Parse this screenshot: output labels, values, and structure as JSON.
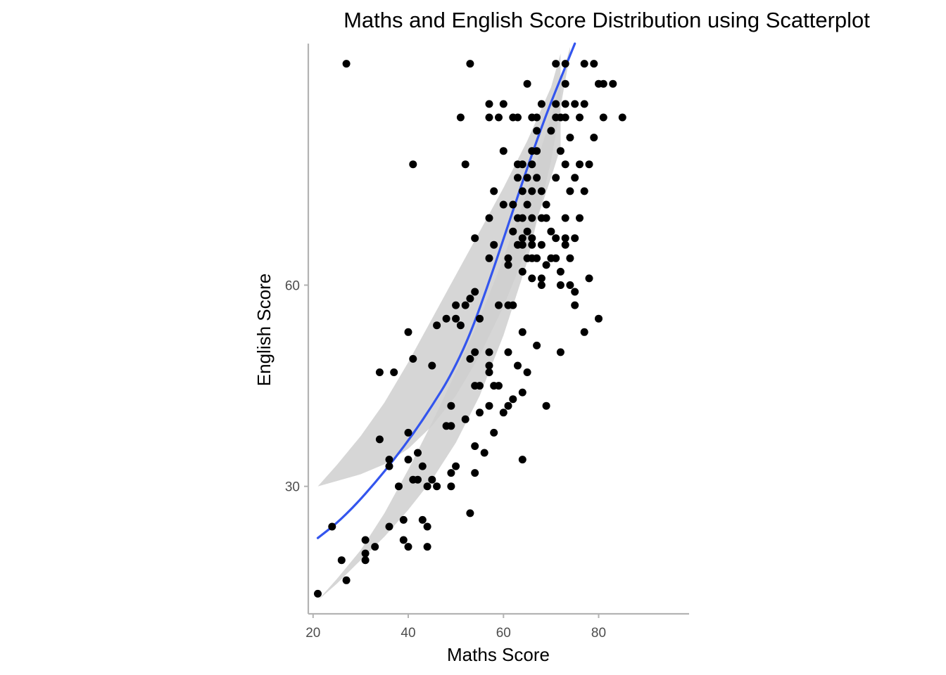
{
  "chart_data": {
    "type": "scatter",
    "title": "Maths and English Score Distribution using Scatterplot",
    "xlabel": "Maths Score",
    "ylabel": "English Score",
    "xlim": [
      19,
      99
    ],
    "ylim": [
      11,
      96
    ],
    "x_ticks": [
      "20",
      "40",
      "60",
      "80"
    ],
    "y_ticks": [
      "30",
      "60"
    ],
    "grid": false,
    "legend": "none",
    "colors": {
      "points": "#000000",
      "trend": "#3355ee",
      "band": "#cfcfcf",
      "axis": "#b3b3b3"
    },
    "points": [
      [
        27,
        93
      ],
      [
        53,
        93
      ],
      [
        71,
        93
      ],
      [
        73,
        93
      ],
      [
        77,
        93
      ],
      [
        79,
        93
      ],
      [
        65,
        90
      ],
      [
        73,
        90
      ],
      [
        80,
        90
      ],
      [
        81,
        90
      ],
      [
        83,
        90
      ],
      [
        57,
        87
      ],
      [
        60,
        87
      ],
      [
        68,
        87
      ],
      [
        71,
        87
      ],
      [
        73,
        87
      ],
      [
        75,
        87
      ],
      [
        77,
        87
      ],
      [
        51,
        85
      ],
      [
        57,
        85
      ],
      [
        59,
        85
      ],
      [
        62,
        85
      ],
      [
        63,
        85
      ],
      [
        66,
        85
      ],
      [
        67,
        85
      ],
      [
        71,
        85
      ],
      [
        72,
        85
      ],
      [
        73,
        85
      ],
      [
        76,
        85
      ],
      [
        81,
        85
      ],
      [
        85,
        85
      ],
      [
        67,
        83
      ],
      [
        70,
        83
      ],
      [
        74,
        82
      ],
      [
        79,
        82
      ],
      [
        60,
        80
      ],
      [
        66,
        80
      ],
      [
        67,
        80
      ],
      [
        72,
        80
      ],
      [
        41,
        78
      ],
      [
        52,
        78
      ],
      [
        63,
        78
      ],
      [
        64,
        78
      ],
      [
        66,
        78
      ],
      [
        73,
        78
      ],
      [
        76,
        78
      ],
      [
        78,
        78
      ],
      [
        63,
        76
      ],
      [
        65,
        76
      ],
      [
        67,
        76
      ],
      [
        71,
        76
      ],
      [
        75,
        76
      ],
      [
        58,
        74
      ],
      [
        64,
        74
      ],
      [
        66,
        74
      ],
      [
        68,
        74
      ],
      [
        74,
        74
      ],
      [
        77,
        74
      ],
      [
        60,
        72
      ],
      [
        62,
        72
      ],
      [
        65,
        72
      ],
      [
        69,
        72
      ],
      [
        57,
        70
      ],
      [
        63,
        70
      ],
      [
        64,
        70
      ],
      [
        66,
        70
      ],
      [
        68,
        70
      ],
      [
        69,
        70
      ],
      [
        73,
        70
      ],
      [
        76,
        70
      ],
      [
        62,
        68
      ],
      [
        65,
        68
      ],
      [
        70,
        68
      ],
      [
        54,
        67
      ],
      [
        64,
        67
      ],
      [
        66,
        67
      ],
      [
        71,
        67
      ],
      [
        73,
        67
      ],
      [
        75,
        67
      ],
      [
        58,
        66
      ],
      [
        63,
        66
      ],
      [
        64,
        66
      ],
      [
        66,
        66
      ],
      [
        68,
        66
      ],
      [
        73,
        66
      ],
      [
        57,
        64
      ],
      [
        61,
        64
      ],
      [
        65,
        64
      ],
      [
        66,
        64
      ],
      [
        67,
        64
      ],
      [
        70,
        64
      ],
      [
        71,
        64
      ],
      [
        74,
        64
      ],
      [
        61,
        63
      ],
      [
        69,
        63
      ],
      [
        64,
        62
      ],
      [
        72,
        62
      ],
      [
        66,
        61
      ],
      [
        68,
        61
      ],
      [
        78,
        61
      ],
      [
        68,
        60
      ],
      [
        72,
        60
      ],
      [
        74,
        60
      ],
      [
        75,
        59
      ],
      [
        54,
        59
      ],
      [
        53,
        58
      ],
      [
        50,
        57
      ],
      [
        52,
        57
      ],
      [
        59,
        57
      ],
      [
        61,
        57
      ],
      [
        62,
        57
      ],
      [
        75,
        57
      ],
      [
        48,
        55
      ],
      [
        50,
        55
      ],
      [
        55,
        55
      ],
      [
        46,
        54
      ],
      [
        51,
        54
      ],
      [
        80,
        55
      ],
      [
        40,
        53
      ],
      [
        64,
        53
      ],
      [
        77,
        53
      ],
      [
        67,
        51
      ],
      [
        54,
        50
      ],
      [
        57,
        50
      ],
      [
        61,
        50
      ],
      [
        72,
        50
      ],
      [
        41,
        49
      ],
      [
        53,
        49
      ],
      [
        45,
        48
      ],
      [
        57,
        48
      ],
      [
        63,
        48
      ],
      [
        34,
        47
      ],
      [
        37,
        47
      ],
      [
        57,
        47
      ],
      [
        65,
        47
      ],
      [
        54,
        45
      ],
      [
        55,
        45
      ],
      [
        58,
        45
      ],
      [
        59,
        45
      ],
      [
        62,
        43
      ],
      [
        64,
        44
      ],
      [
        57,
        42
      ],
      [
        61,
        42
      ],
      [
        69,
        42
      ],
      [
        49,
        42
      ],
      [
        55,
        41
      ],
      [
        60,
        41
      ],
      [
        52,
        40
      ],
      [
        48,
        39
      ],
      [
        49,
        39
      ],
      [
        58,
        38
      ],
      [
        40,
        38
      ],
      [
        34,
        37
      ],
      [
        54,
        36
      ],
      [
        56,
        35
      ],
      [
        42,
        35
      ],
      [
        36,
        34
      ],
      [
        40,
        34
      ],
      [
        64,
        34
      ],
      [
        36,
        33
      ],
      [
        43,
        33
      ],
      [
        50,
        33
      ],
      [
        49,
        32
      ],
      [
        54,
        32
      ],
      [
        41,
        31
      ],
      [
        42,
        31
      ],
      [
        45,
        31
      ],
      [
        46,
        30
      ],
      [
        38,
        30
      ],
      [
        44,
        30
      ],
      [
        49,
        30
      ],
      [
        53,
        26
      ],
      [
        43,
        25
      ],
      [
        39,
        25
      ],
      [
        44,
        24
      ],
      [
        36,
        24
      ],
      [
        24,
        24
      ],
      [
        31,
        22
      ],
      [
        39,
        22
      ],
      [
        40,
        21
      ],
      [
        33,
        21
      ],
      [
        44,
        21
      ],
      [
        31,
        20
      ],
      [
        26,
        19
      ],
      [
        31,
        19
      ],
      [
        27,
        16
      ],
      [
        21,
        14
      ]
    ],
    "trend": {
      "x": [
        21,
        25,
        29,
        33,
        37,
        41,
        45,
        49,
        53,
        57,
        61,
        65,
        69,
        73,
        75
      ],
      "y": [
        22.3,
        24.5,
        27.3,
        30.5,
        34.0,
        37.8,
        42.0,
        46.6,
        52.6,
        60.5,
        69.0,
        77.5,
        85.5,
        92.5,
        96
      ]
    },
    "bands": [
      {
        "x": [
          21,
          25,
          30,
          35,
          40,
          45,
          50,
          55,
          60,
          65,
          70,
          72
        ],
        "lower": [
          30,
          30.8,
          31.8,
          33.3,
          35.6,
          39.0,
          43.5,
          49.5,
          56.8,
          65.5,
          76.0,
          80.5
        ],
        "upper": [
          30,
          33.2,
          37.5,
          42.5,
          48.5,
          55.0,
          61.5,
          68.0,
          74.5,
          81.5,
          89.5,
          94.5
        ]
      },
      {
        "x": [
          21,
          25,
          30,
          35,
          40,
          45,
          50,
          55,
          60,
          65,
          70,
          74
        ],
        "lower": [
          13,
          15.5,
          19.0,
          22.5,
          26.5,
          31.0,
          36.5,
          43.5,
          52.5,
          63.5,
          78.5,
          94.5
        ],
        "upper": [
          13,
          16.2,
          20.5,
          26.0,
          32.5,
          39.5,
          47.0,
          55.0,
          64.0,
          74.0,
          85.0,
          95.5
        ]
      }
    ]
  }
}
